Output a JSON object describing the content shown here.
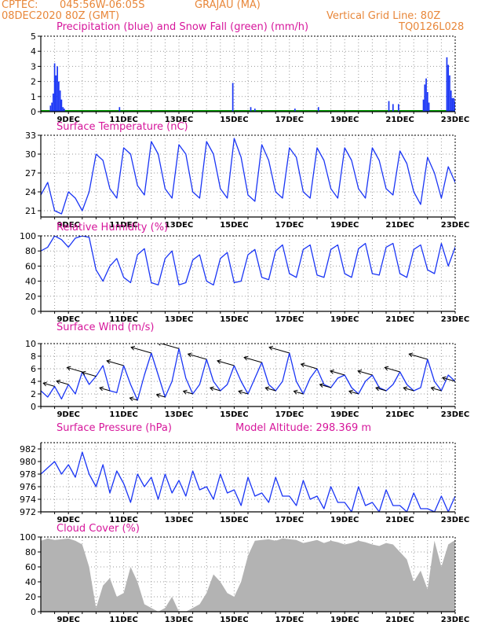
{
  "header": {
    "source": "CPTEC:",
    "coords": "045:56W-06:05S",
    "station": "GRAJAU (MA)",
    "run": "08DEC2020 80Z (GMT)",
    "grid_note": "Vertical Grid Line: 80Z",
    "code": "TQ0126L028"
  },
  "colors": {
    "header": "#e8873a",
    "title": "#d6169b",
    "precip": "#1a35f5",
    "snow": "#00a000",
    "line": "#1a35f5",
    "cloud": "#b3b3b3",
    "grid": "#9a9a9a",
    "axis": "#000000"
  },
  "x_ticks": [
    "9DEC",
    "11DEC",
    "13DEC",
    "15DEC",
    "17DEC",
    "19DEC",
    "21DEC",
    "23DEC"
  ],
  "pressure_extra": "Model Altitude: 298.369 m",
  "chart_data": [
    {
      "id": "precip",
      "type": "bar",
      "title": "Precipitation (blue) and Snow Fall (green) (mm/h)",
      "ylim": [
        0,
        5
      ],
      "yticks": [
        0,
        1,
        2,
        3,
        4,
        5
      ],
      "series": [
        {
          "name": "Precipitation (blue)",
          "x": [
            8.35,
            8.4,
            8.45,
            8.5,
            8.55,
            8.6,
            8.65,
            8.7,
            8.75,
            8.8,
            8.85,
            10.85,
            14.95,
            15.6,
            15.75,
            17.2,
            18.05,
            20.6,
            20.75,
            20.95,
            21.85,
            21.9,
            21.95,
            22.0,
            22.05,
            22.7,
            22.75,
            22.8,
            22.85,
            22.9,
            22.95,
            23.0
          ],
          "values": [
            0.4,
            0.6,
            1.2,
            3.2,
            2.4,
            3.0,
            2.0,
            1.4,
            0.8,
            0.3,
            0.2,
            0.3,
            1.9,
            0.3,
            0.2,
            0.2,
            0.3,
            0.7,
            0.5,
            0.5,
            0.8,
            1.8,
            2.2,
            1.3,
            0.6,
            3.6,
            3.1,
            2.4,
            1.4,
            0.9,
            0.9,
            0.7
          ]
        },
        {
          "name": "Snow Fall (green)",
          "x": [
            8.0,
            23.0
          ],
          "values": [
            0.05,
            0.05
          ]
        }
      ]
    },
    {
      "id": "temperature",
      "type": "line",
      "title": "Surface Temperature (nC)",
      "ylim": [
        20,
        33
      ],
      "yticks": [
        21,
        24,
        27,
        30,
        33
      ],
      "x": [
        8.0,
        8.25,
        8.5,
        8.75,
        9.0,
        9.25,
        9.5,
        9.75,
        10.0,
        10.25,
        10.5,
        10.75,
        11.0,
        11.25,
        11.5,
        11.75,
        12.0,
        12.25,
        12.5,
        12.75,
        13.0,
        13.25,
        13.5,
        13.75,
        14.0,
        14.25,
        14.5,
        14.75,
        15.0,
        15.25,
        15.5,
        15.75,
        16.0,
        16.25,
        16.5,
        16.75,
        17.0,
        17.25,
        17.5,
        17.75,
        18.0,
        18.25,
        18.5,
        18.75,
        19.0,
        19.25,
        19.5,
        19.75,
        20.0,
        20.25,
        20.5,
        20.75,
        21.0,
        21.25,
        21.5,
        21.75,
        22.0,
        22.25,
        22.5,
        22.75,
        23.0
      ],
      "values": [
        23.5,
        25.5,
        21.0,
        20.5,
        24.0,
        23.0,
        21.0,
        24.0,
        30.0,
        29.0,
        24.5,
        23.0,
        31.0,
        30.0,
        25.0,
        23.5,
        32.0,
        30.0,
        24.5,
        23.0,
        31.5,
        30.0,
        24.0,
        23.0,
        32.0,
        30.0,
        24.5,
        23.0,
        32.5,
        29.5,
        23.5,
        22.5,
        31.5,
        29.0,
        24.0,
        23.0,
        31.0,
        29.5,
        24.0,
        23.0,
        31.0,
        29.0,
        24.5,
        23.0,
        31.0,
        29.0,
        24.5,
        23.0,
        31.0,
        29.0,
        24.5,
        23.5,
        30.5,
        28.5,
        24.0,
        22.0,
        29.5,
        27.0,
        23.0,
        28.0,
        25.5
      ]
    },
    {
      "id": "humidity",
      "type": "line",
      "title": "Relative Humidity (%)",
      "ylim": [
        0,
        100
      ],
      "yticks": [
        0,
        20,
        40,
        60,
        80,
        100
      ],
      "x": [
        8.0,
        8.25,
        8.5,
        8.75,
        9.0,
        9.25,
        9.5,
        9.75,
        10.0,
        10.25,
        10.5,
        10.75,
        11.0,
        11.25,
        11.5,
        11.75,
        12.0,
        12.25,
        12.5,
        12.75,
        13.0,
        13.25,
        13.5,
        13.75,
        14.0,
        14.25,
        14.5,
        14.75,
        15.0,
        15.25,
        15.5,
        15.75,
        16.0,
        16.25,
        16.5,
        16.75,
        17.0,
        17.25,
        17.5,
        17.75,
        18.0,
        18.25,
        18.5,
        18.75,
        19.0,
        19.25,
        19.5,
        19.75,
        20.0,
        20.25,
        20.5,
        20.75,
        21.0,
        21.25,
        21.5,
        21.75,
        22.0,
        22.25,
        22.5,
        22.75,
        23.0
      ],
      "values": [
        80,
        85,
        100,
        95,
        85,
        97,
        100,
        98,
        55,
        40,
        60,
        70,
        45,
        38,
        75,
        83,
        38,
        35,
        70,
        80,
        35,
        38,
        68,
        75,
        40,
        35,
        70,
        78,
        38,
        40,
        75,
        82,
        45,
        42,
        80,
        88,
        50,
        45,
        82,
        88,
        48,
        45,
        82,
        88,
        50,
        45,
        83,
        90,
        50,
        48,
        85,
        90,
        50,
        45,
        82,
        88,
        55,
        50,
        90,
        60,
        85
      ]
    },
    {
      "id": "wind",
      "type": "line",
      "title": "Surface Wind (m/s)",
      "ylim": [
        0,
        10
      ],
      "yticks": [
        0,
        2,
        4,
        6,
        8,
        10
      ],
      "x": [
        8.0,
        8.25,
        8.5,
        8.75,
        9.0,
        9.25,
        9.5,
        9.75,
        10.0,
        10.25,
        10.5,
        10.75,
        11.0,
        11.25,
        11.5,
        11.75,
        12.0,
        12.25,
        12.5,
        12.75,
        13.0,
        13.25,
        13.5,
        13.75,
        14.0,
        14.25,
        14.5,
        14.75,
        15.0,
        15.25,
        15.5,
        15.75,
        16.0,
        16.25,
        16.5,
        16.75,
        17.0,
        17.25,
        17.5,
        17.75,
        18.0,
        18.25,
        18.5,
        18.75,
        19.0,
        19.25,
        19.5,
        19.75,
        20.0,
        20.25,
        20.5,
        20.75,
        21.0,
        21.25,
        21.5,
        21.75,
        22.0,
        22.25,
        22.5,
        22.75,
        23.0
      ],
      "values": [
        2.5,
        1.5,
        3.2,
        1.2,
        3.5,
        2.0,
        5.5,
        3.5,
        4.8,
        6.5,
        2.5,
        2.2,
        6.5,
        3.5,
        1.0,
        5.0,
        8.5,
        5.0,
        1.5,
        4.0,
        9.2,
        4.5,
        2.0,
        3.5,
        7.5,
        4.0,
        2.5,
        3.5,
        6.5,
        4.0,
        2.0,
        4.5,
        7.0,
        3.5,
        2.5,
        4.0,
        8.5,
        4.0,
        2.0,
        4.5,
        6.0,
        3.5,
        3.0,
        4.5,
        5.0,
        3.0,
        2.0,
        4.0,
        5.0,
        3.0,
        2.5,
        3.5,
        5.5,
        3.5,
        2.5,
        3.0,
        7.5,
        4.0,
        2.5,
        5.0,
        4.0
      ]
    },
    {
      "id": "pressure",
      "type": "line",
      "title": "Surface Pressure (hPa)",
      "ylim": [
        972,
        983
      ],
      "yticks": [
        972,
        974,
        976,
        978,
        980,
        982
      ],
      "x": [
        8.0,
        8.25,
        8.5,
        8.75,
        9.0,
        9.25,
        9.5,
        9.75,
        10.0,
        10.25,
        10.5,
        10.75,
        11.0,
        11.25,
        11.5,
        11.75,
        12.0,
        12.25,
        12.5,
        12.75,
        13.0,
        13.25,
        13.5,
        13.75,
        14.0,
        14.25,
        14.5,
        14.75,
        15.0,
        15.25,
        15.5,
        15.75,
        16.0,
        16.25,
        16.5,
        16.75,
        17.0,
        17.25,
        17.5,
        17.75,
        18.0,
        18.25,
        18.5,
        18.75,
        19.0,
        19.25,
        19.5,
        19.75,
        20.0,
        20.25,
        20.5,
        20.75,
        21.0,
        21.25,
        21.5,
        21.75,
        22.0,
        22.25,
        22.5,
        22.75,
        23.0
      ],
      "values": [
        978.0,
        979.0,
        980.0,
        978.0,
        979.5,
        977.5,
        981.5,
        978.0,
        976.0,
        979.5,
        975.0,
        978.5,
        976.5,
        973.5,
        978.0,
        976.0,
        977.5,
        974.0,
        978.0,
        975.0,
        977.0,
        974.5,
        978.5,
        975.5,
        976.0,
        974.0,
        978.0,
        975.0,
        975.5,
        973.0,
        977.5,
        974.5,
        975.0,
        973.5,
        977.5,
        974.5,
        974.5,
        973.0,
        977.0,
        974.0,
        974.5,
        972.5,
        976.0,
        973.5,
        973.5,
        972.0,
        976.0,
        973.0,
        973.5,
        972.0,
        975.5,
        973.0,
        973.0,
        972.0,
        975.0,
        972.5,
        972.5,
        972.0,
        974.5,
        972.0,
        974.5
      ]
    },
    {
      "id": "cloud",
      "type": "area",
      "title": "Cloud Cover (%)",
      "ylim": [
        0,
        100
      ],
      "yticks": [
        0,
        20,
        40,
        60,
        80,
        100
      ],
      "x": [
        8.0,
        8.25,
        8.5,
        8.75,
        9.0,
        9.25,
        9.5,
        9.75,
        10.0,
        10.25,
        10.5,
        10.75,
        11.0,
        11.25,
        11.5,
        11.75,
        12.0,
        12.25,
        12.5,
        12.75,
        13.0,
        13.25,
        13.5,
        13.75,
        14.0,
        14.25,
        14.5,
        14.75,
        15.0,
        15.25,
        15.5,
        15.75,
        16.0,
        16.25,
        16.5,
        16.75,
        17.0,
        17.25,
        17.5,
        17.75,
        18.0,
        18.25,
        18.5,
        18.75,
        19.0,
        19.25,
        19.5,
        19.75,
        20.0,
        20.25,
        20.5,
        20.75,
        21.0,
        21.25,
        21.5,
        21.75,
        22.0,
        22.25,
        22.5,
        22.75,
        23.0
      ],
      "values": [
        95,
        98,
        96,
        97,
        98,
        95,
        90,
        60,
        5,
        35,
        45,
        20,
        25,
        60,
        40,
        10,
        5,
        0,
        5,
        20,
        0,
        0,
        5,
        10,
        25,
        50,
        40,
        25,
        20,
        40,
        75,
        95,
        96,
        97,
        95,
        98,
        97,
        96,
        92,
        94,
        96,
        92,
        95,
        93,
        90,
        92,
        95,
        93,
        90,
        88,
        92,
        90,
        80,
        70,
        40,
        55,
        30,
        95,
        60,
        90,
        96
      ]
    }
  ]
}
